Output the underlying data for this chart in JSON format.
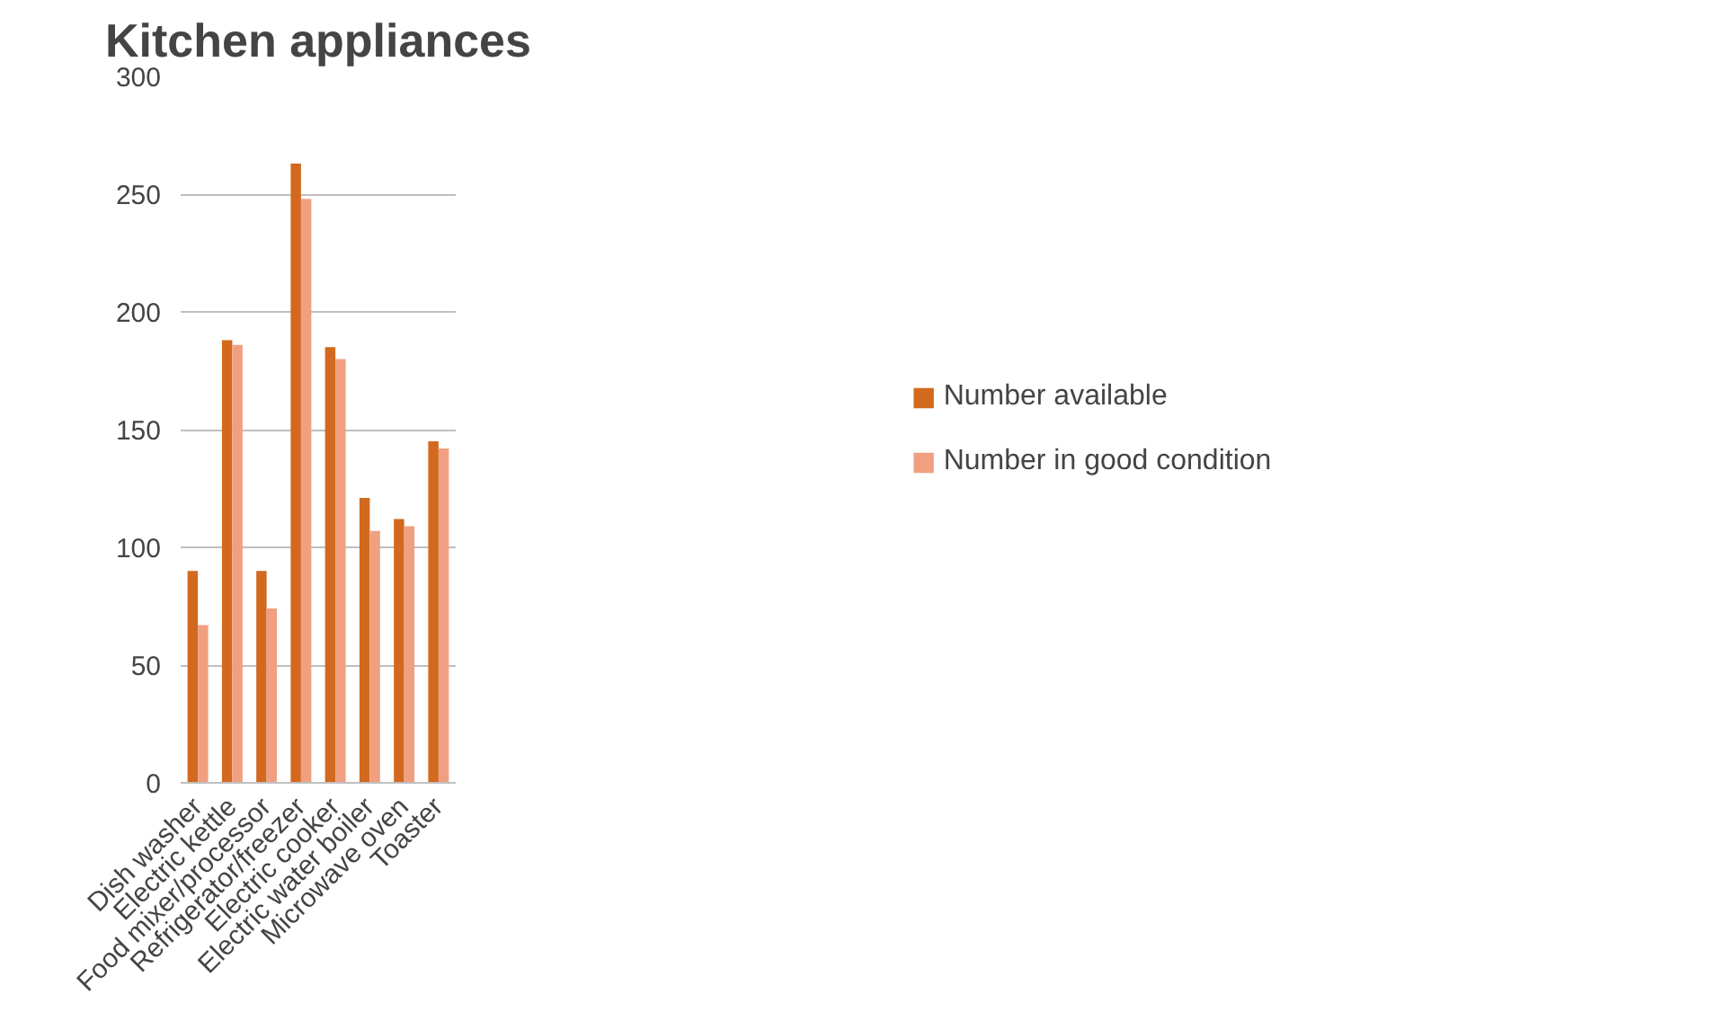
{
  "chart_data": {
    "type": "bar",
    "title": "Kitchen appliances",
    "categories": [
      "Dish washer",
      "Electric kettle",
      "Food mixer/processor",
      "Refrigerator/freezer",
      "Electric cooker",
      "Electric water boiler",
      "Microwave oven",
      "Toaster"
    ],
    "series": [
      {
        "name": "Number available",
        "color": "#d2691e",
        "values": [
          90,
          188,
          90,
          263,
          185,
          121,
          112,
          145
        ]
      },
      {
        "name": "Number in good condition",
        "color": "#f0a080",
        "values": [
          67,
          186,
          74,
          248,
          180,
          107,
          109,
          142
        ]
      }
    ],
    "ylim": [
      0,
      300
    ],
    "yticks": [
      0,
      50,
      100,
      150,
      200,
      250,
      300
    ],
    "grid": "y",
    "legend": "right"
  }
}
